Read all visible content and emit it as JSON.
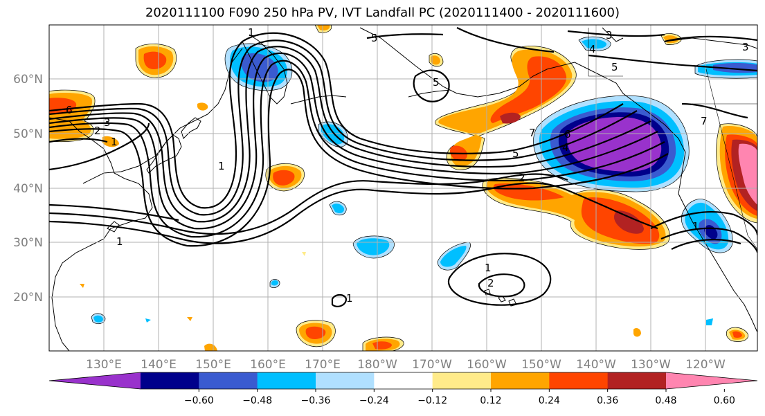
{
  "title": "2020111100 F090 250 hPa PV, IVT Landfall PC (2020111400 - 2020111600)",
  "lat_labels": [
    "60°N",
    "50°N",
    "40°N",
    "30°N",
    "20°N"
  ],
  "lon_labels": [
    "130°E",
    "140°E",
    "150°E",
    "160°E",
    "170°E",
    "180°W",
    "170°W",
    "160°W",
    "150°W",
    "140°W",
    "130°W",
    "120°W"
  ],
  "colorbar": {
    "colors": [
      "#9932cc",
      "#00008b",
      "#3a5bd0",
      "#00bfff",
      "#b0e0ff",
      "#ffffff",
      "#ffeb8a",
      "#ffa500",
      "#ff4500",
      "#b22222",
      "#ff85b0"
    ],
    "tick_labels": [
      "−0.60",
      "−0.48",
      "−0.36",
      "−0.24",
      "−0.12",
      "0.12",
      "0.24",
      "0.36",
      "0.48",
      "0.60"
    ]
  },
  "contour_labels": [
    "1",
    "5",
    "3",
    "4",
    "5",
    "6",
    "2",
    "3",
    "1",
    "1",
    "5",
    "1",
    "7",
    "5",
    "4",
    "2",
    "6",
    "3",
    "1",
    "1",
    "2",
    "1",
    "7"
  ]
}
